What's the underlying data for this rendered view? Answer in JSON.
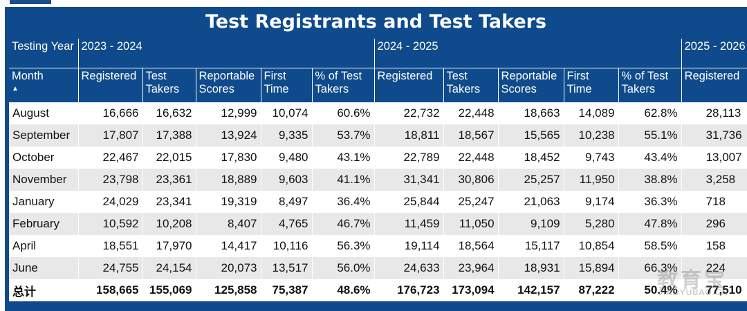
{
  "title": "Test Registrants and Test Takers",
  "header": {
    "testing_year_label": "Testing Year",
    "years": [
      "2023 - 2024",
      "2024 - 2025",
      "2025 - 2026"
    ],
    "month_label": "Month",
    "sort_indicator": "▲",
    "columns": [
      "Registered",
      "Test Takers",
      "Reportable Scores",
      "First Time",
      "% of Test Takers"
    ]
  },
  "rows": [
    {
      "month": "August",
      "y1": [
        "16,666",
        "16,632",
        "12,999",
        "10,074",
        "60.6%"
      ],
      "y2": [
        "22,732",
        "22,448",
        "18,663",
        "14,089",
        "62.8%"
      ],
      "y3": "28,113"
    },
    {
      "month": "September",
      "y1": [
        "17,807",
        "17,388",
        "13,924",
        "9,335",
        "53.7%"
      ],
      "y2": [
        "18,811",
        "18,567",
        "15,565",
        "10,238",
        "55.1%"
      ],
      "y3": "31,736"
    },
    {
      "month": "October",
      "y1": [
        "22,467",
        "22,015",
        "17,830",
        "9,480",
        "43.1%"
      ],
      "y2": [
        "22,789",
        "22,448",
        "18,452",
        "9,743",
        "43.4%"
      ],
      "y3": "13,007"
    },
    {
      "month": "November",
      "y1": [
        "23,798",
        "23,361",
        "18,889",
        "9,603",
        "41.1%"
      ],
      "y2": [
        "31,341",
        "30,806",
        "25,257",
        "11,950",
        "38.8%"
      ],
      "y3": "3,258"
    },
    {
      "month": "January",
      "y1": [
        "24,029",
        "23,341",
        "19,319",
        "8,497",
        "36.4%"
      ],
      "y2": [
        "25,844",
        "25,247",
        "21,063",
        "9,174",
        "36.3%"
      ],
      "y3": "718"
    },
    {
      "month": "February",
      "y1": [
        "10,592",
        "10,208",
        "8,407",
        "4,765",
        "46.7%"
      ],
      "y2": [
        "11,459",
        "11,050",
        "9,109",
        "5,280",
        "47.8%"
      ],
      "y3": "296"
    },
    {
      "month": "April",
      "y1": [
        "18,551",
        "17,970",
        "14,417",
        "10,116",
        "56.3%"
      ],
      "y2": [
        "19,114",
        "18,564",
        "15,117",
        "10,854",
        "58.5%"
      ],
      "y3": "158"
    },
    {
      "month": "June",
      "y1": [
        "24,755",
        "24,154",
        "20,073",
        "13,517",
        "56.0%"
      ],
      "y2": [
        "24,633",
        "23,964",
        "18,931",
        "15,894",
        "66.3%"
      ],
      "y3": "224"
    }
  ],
  "total": {
    "label": "总计",
    "y1": [
      "158,665",
      "155,069",
      "125,858",
      "75,387",
      "48.6%"
    ],
    "y2": [
      "176,723",
      "173,094",
      "142,157",
      "87,222",
      "50.4%"
    ],
    "y3": "77,510"
  },
  "watermark": {
    "main": "教育宝",
    "sub": "JIAOYUBAO.CN"
  }
}
